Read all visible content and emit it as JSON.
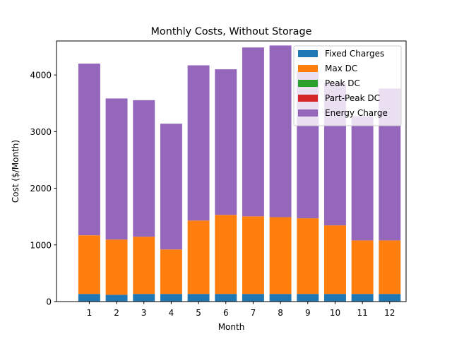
{
  "chart_data": {
    "type": "bar",
    "stacked": true,
    "title": "Monthly Costs, Without Storage",
    "xlabel": "Month",
    "ylabel": "Cost ($/Month)",
    "categories": [
      "1",
      "2",
      "3",
      "4",
      "5",
      "6",
      "7",
      "8",
      "9",
      "10",
      "11",
      "12"
    ],
    "ylim": [
      0,
      4600
    ],
    "yticks": [
      0,
      1000,
      2000,
      3000,
      4000
    ],
    "grid": false,
    "legend_position": "top-right",
    "series": [
      {
        "name": "Fixed Charges",
        "color": "#1f77b4",
        "values": [
          135,
          120,
          135,
          135,
          135,
          135,
          135,
          135,
          135,
          135,
          135,
          135
        ]
      },
      {
        "name": "Max DC",
        "color": "#ff7f0e",
        "values": [
          1035,
          975,
          1010,
          785,
          1295,
          1395,
          1370,
          1355,
          1335,
          1210,
          945,
          945
        ]
      },
      {
        "name": "Peak DC",
        "color": "#2ca02c",
        "values": [
          0,
          0,
          0,
          0,
          0,
          0,
          0,
          0,
          0,
          0,
          0,
          0
        ]
      },
      {
        "name": "Part-Peak DC",
        "color": "#d62728",
        "values": [
          0,
          0,
          0,
          0,
          0,
          0,
          0,
          0,
          0,
          0,
          0,
          0
        ]
      },
      {
        "name": "Energy Charge",
        "color": "#9467bd",
        "values": [
          3030,
          2490,
          2410,
          2220,
          2740,
          2570,
          2980,
          3030,
          2610,
          2515,
          2190,
          2680
        ]
      }
    ]
  }
}
